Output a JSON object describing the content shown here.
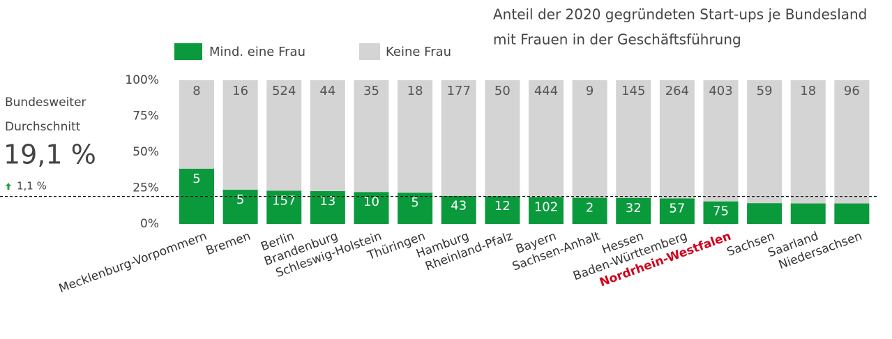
{
  "chart_data": {
    "type": "bar",
    "stacking": "percent",
    "title": [
      "Anteil der 2020 gegründeten Start-ups je Bundesland",
      "mit Frauen in der Geschäftsführung"
    ],
    "categories": [
      "Mecklenburg-Vorpommern",
      "Bremen",
      "Berlin",
      "Brandenburg",
      "Schleswig-Holstein",
      "Thüringen",
      "Hamburg",
      "Rheinland-Pfalz",
      "Bayern",
      "Sachsen-Anhalt",
      "Hessen",
      "Baden-Württemberg",
      "Nordrhein-Westfalen",
      "Sachsen",
      "Saarland",
      "Niedersachsen"
    ],
    "series": [
      {
        "name": "Mind. eine Frau",
        "color": "#0a9a3c",
        "values": [
          5,
          5,
          157,
          13,
          10,
          5,
          43,
          12,
          102,
          2,
          32,
          57,
          75,
          10,
          3,
          16
        ]
      },
      {
        "name": "Keine Frau",
        "color": "#d4d4d4",
        "values": [
          8,
          16,
          524,
          44,
          35,
          18,
          177,
          50,
          444,
          9,
          145,
          264,
          403,
          59,
          18,
          96
        ]
      }
    ],
    "ylim": [
      0,
      100
    ],
    "yticks": [
      {
        "value": 0,
        "label": "0%"
      },
      {
        "value": 25,
        "label": "25%"
      },
      {
        "value": 50,
        "label": "50%"
      },
      {
        "value": 75,
        "label": "75%"
      },
      {
        "value": 100,
        "label": "100%"
      }
    ],
    "highlight": {
      "category": 12,
      "color": "#d0021b"
    },
    "average": {
      "heading": [
        "Bundesweiter",
        "Durchschnitt"
      ],
      "value": 19.1,
      "label": "19,1 %",
      "change": "1,1 %",
      "color": "#2e9b45"
    }
  }
}
